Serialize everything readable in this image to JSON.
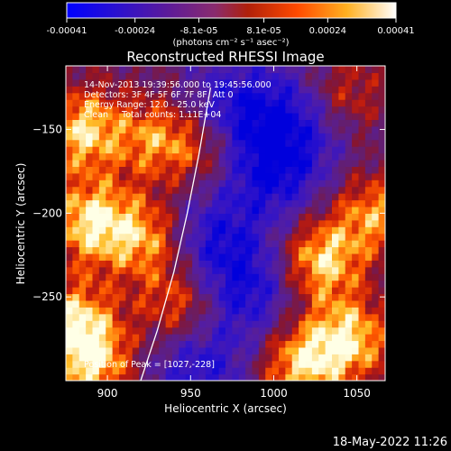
{
  "chart_data": {
    "type": "heatmap",
    "title": "Reconstructed RHESSI Image",
    "xlabel": "Heliocentric X (arcsec)",
    "ylabel": "Heliocentric Y (arcsec)",
    "x_range": [
      875,
      1067
    ],
    "y_range": [
      -300,
      -112
    ],
    "x_ticks": [
      900,
      950,
      1000,
      1050
    ],
    "y_ticks": [
      -150,
      -200,
      -250
    ],
    "colorbar": {
      "range": [
        -0.00041,
        0.00041
      ],
      "tick_values": [
        -0.00041,
        -0.00024,
        -8.1e-05,
        8.1e-05,
        0.00024,
        0.00041
      ],
      "tick_labels": [
        "-0.00041",
        "-0.00024",
        "-8.1e-05",
        "8.1e-05",
        "0.00024",
        "0.00041"
      ],
      "unit_label": "(photons cm⁻² s⁻¹ asec⁻²)",
      "colors": [
        "#0000ff",
        "#5a1a9c",
        "#8a2b6e",
        "#c0180c",
        "#ff6a00",
        "#ffd23a",
        "#ffffff"
      ]
    },
    "annotations": {
      "time": "14-Nov-2013 19:39:56.000 to 19:45:56.000",
      "detectors": "Detectors: 3F 4F 5F 6F 7F 8F, Att 0",
      "energy": "Energy Range: 12.0 - 25.0 keV",
      "method": "Clean     Total counts: 1.11E+04",
      "peak": "Position of Peak = [1027,-228]"
    },
    "peak_position": [
      1027,
      -228
    ],
    "limb_curve": [
      [
        920,
        -300
      ],
      [
        930,
        -270
      ],
      [
        940,
        -235
      ],
      [
        948,
        -200
      ],
      [
        955,
        -165
      ],
      [
        962,
        -125
      ]
    ],
    "hot_regions": [
      {
        "x": 885,
        "y": -150,
        "level": 0.95
      },
      {
        "x": 890,
        "y": -205,
        "level": 1.0
      },
      {
        "x": 880,
        "y": -265,
        "level": 0.9
      },
      {
        "x": 892,
        "y": -290,
        "level": 0.85
      },
      {
        "x": 925,
        "y": -215,
        "level": 0.85
      },
      {
        "x": 945,
        "y": -255,
        "level": 0.8
      },
      {
        "x": 930,
        "y": -155,
        "level": 0.7
      },
      {
        "x": 1027,
        "y": -228,
        "level": 1.0
      },
      {
        "x": 1045,
        "y": -275,
        "level": 0.95
      },
      {
        "x": 1015,
        "y": -290,
        "level": 0.9
      },
      {
        "x": 1040,
        "y": -130,
        "level": 0.7
      },
      {
        "x": 960,
        "y": -160,
        "level": 0.65
      },
      {
        "x": 1060,
        "y": -200,
        "level": 0.75
      }
    ],
    "cold_regions": [
      {
        "x": 975,
        "y": -140,
        "level": 0.95
      },
      {
        "x": 1000,
        "y": -175,
        "level": 0.9
      },
      {
        "x": 985,
        "y": -245,
        "level": 0.85
      },
      {
        "x": 955,
        "y": -290,
        "level": 0.8
      },
      {
        "x": 1020,
        "y": -140,
        "level": 0.75
      },
      {
        "x": 960,
        "y": -215,
        "level": 0.75
      }
    ]
  },
  "footer": {
    "date": "18-May-2022 11:26"
  },
  "colors": {
    "background": "#000000",
    "text": "#ffffff"
  }
}
